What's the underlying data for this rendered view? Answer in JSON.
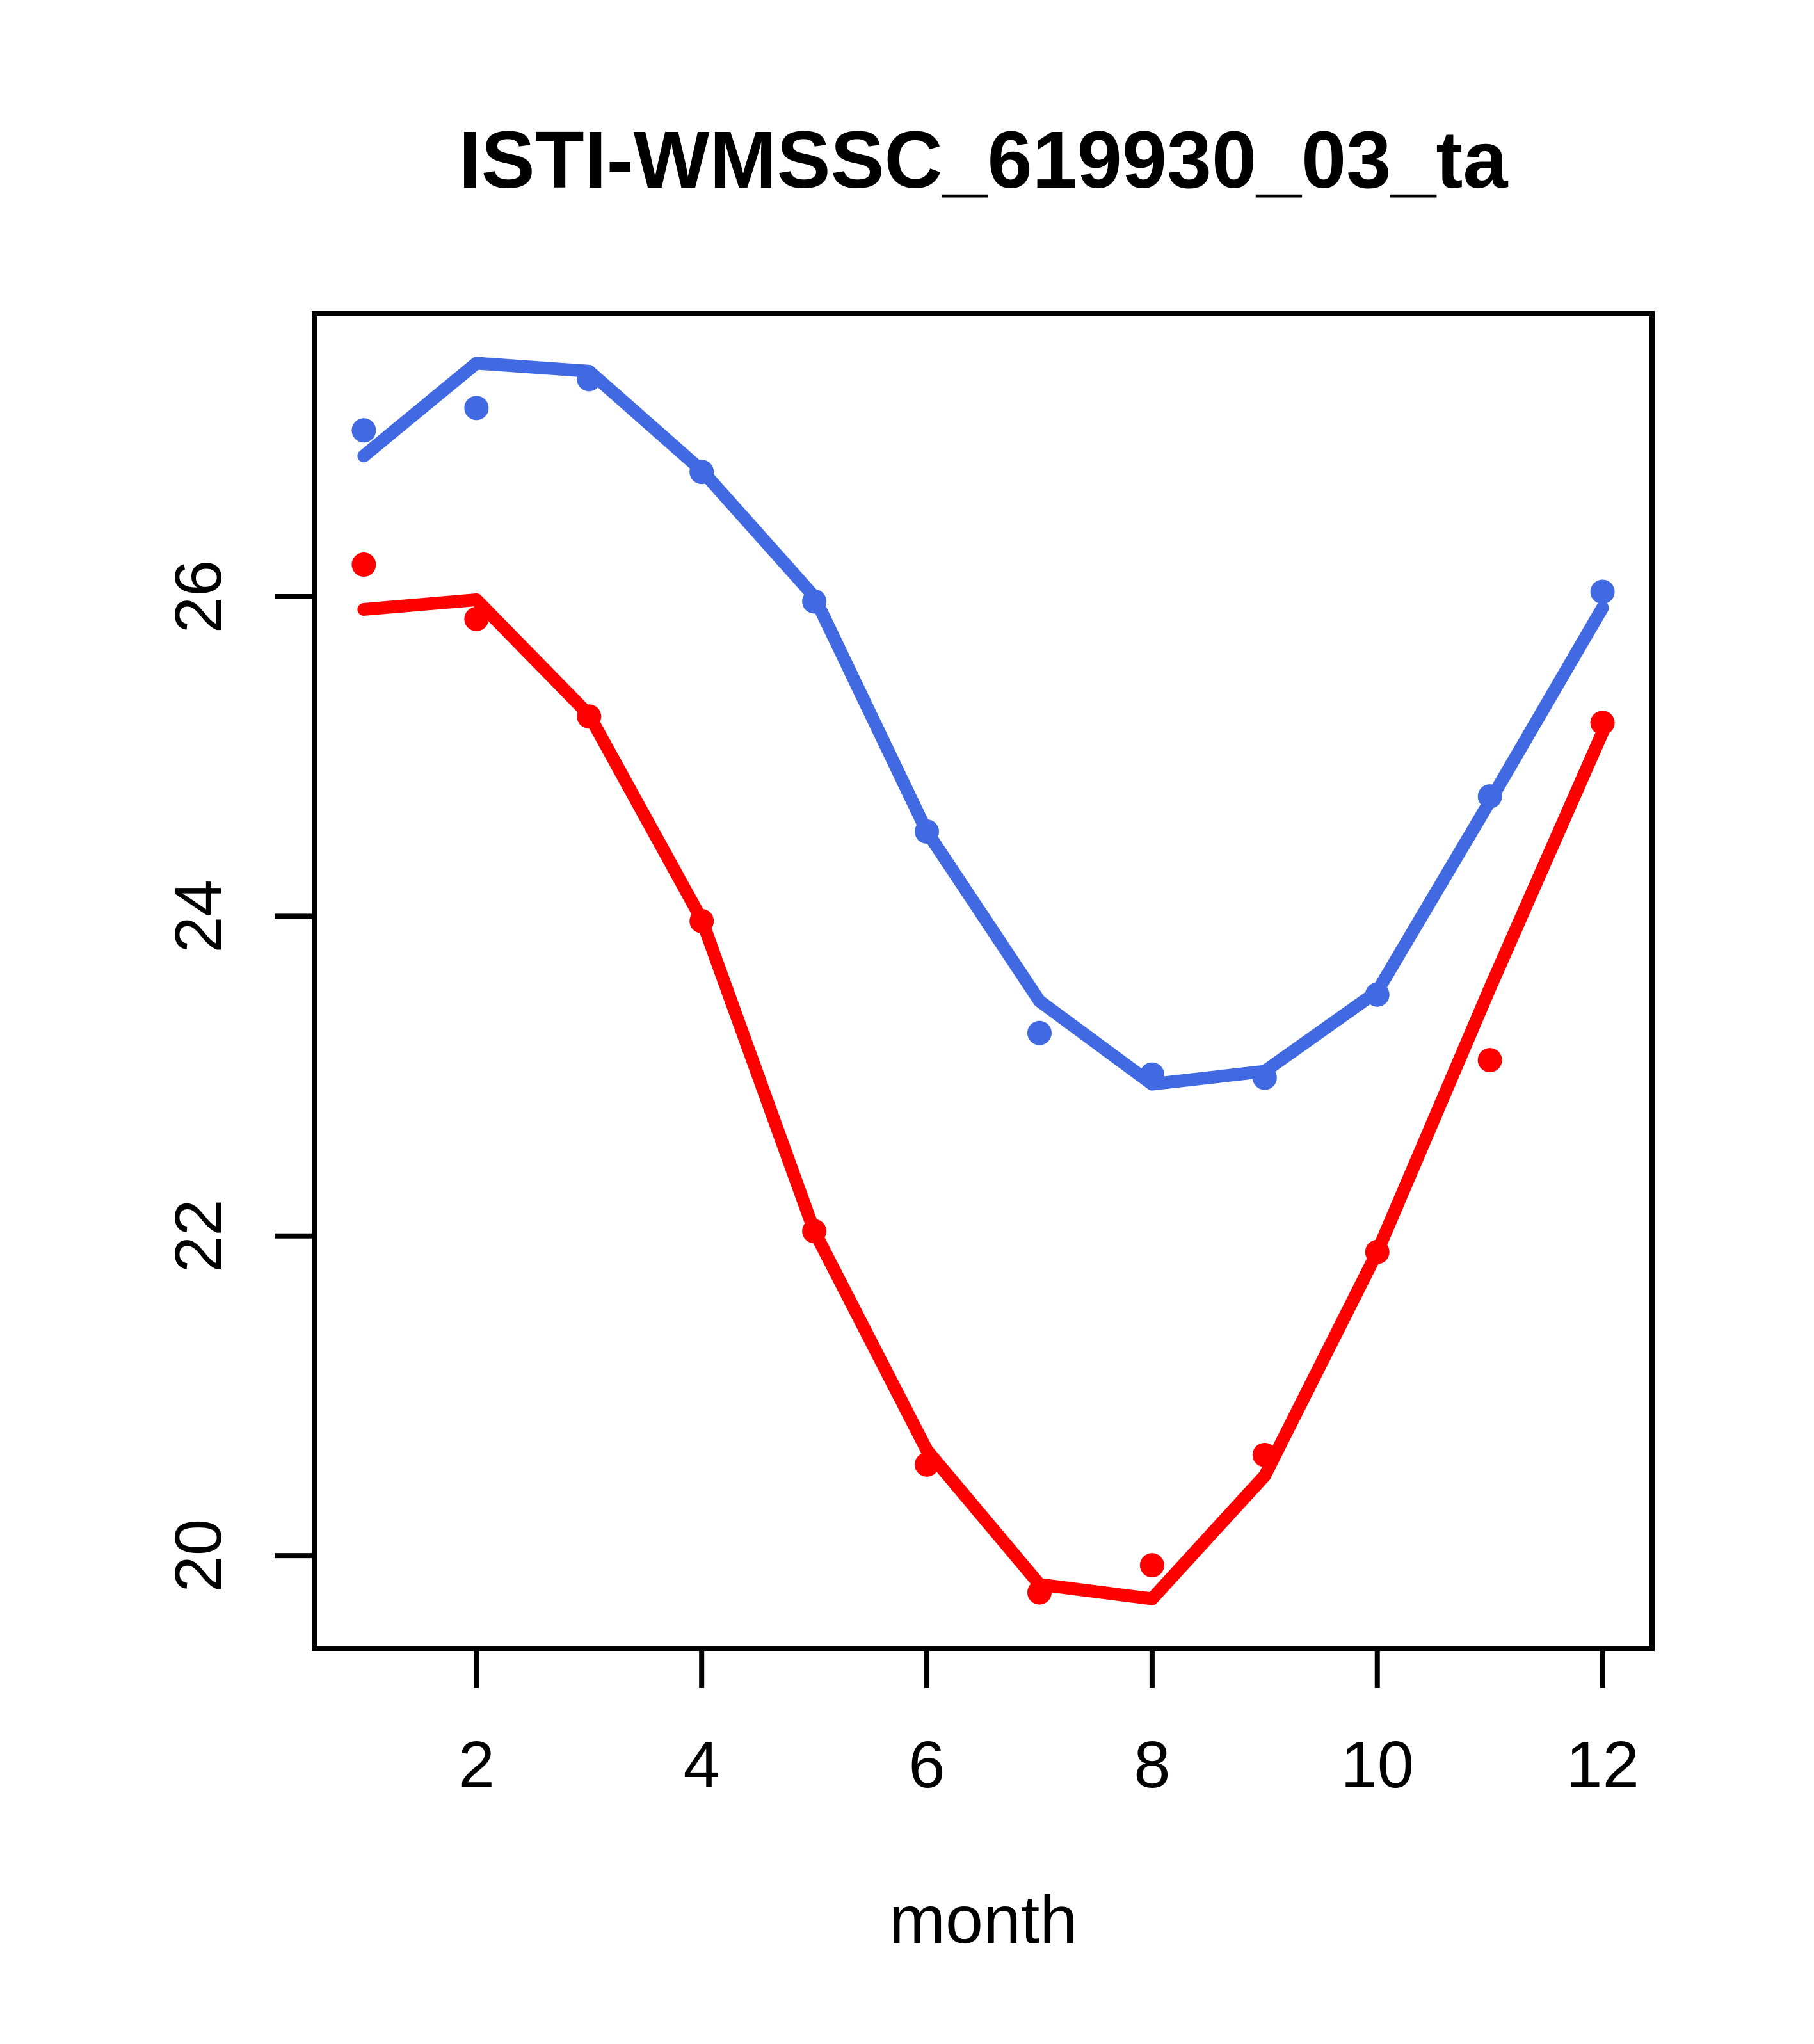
{
  "title": "ISTI-WMSSC_619930_03_ta",
  "xlabel": "month",
  "colors": {
    "series1": "#4169E1",
    "series2": "#FF0000",
    "axis": "#000000",
    "background": "#FFFFFF"
  },
  "chart_data": {
    "type": "line",
    "title": "ISTI-WMSSC_619930_03_ta",
    "xlabel": "month",
    "ylabel": "",
    "x": [
      1,
      2,
      3,
      4,
      5,
      6,
      7,
      8,
      9,
      10,
      11,
      12
    ],
    "xticks": [
      2,
      4,
      6,
      8,
      10,
      12
    ],
    "yticks": [
      20,
      22,
      24,
      26
    ],
    "xlim": [
      0.56,
      12.44
    ],
    "ylim": [
      19.42,
      27.77
    ],
    "grid": false,
    "legend": "none",
    "series": [
      {
        "name": "series1-monthly-points",
        "role": "points",
        "color": "#4169E1",
        "values": [
          27.04,
          27.18,
          27.36,
          26.78,
          25.97,
          24.53,
          23.27,
          23.01,
          22.99,
          23.51,
          24.75,
          26.03
        ]
      },
      {
        "name": "series1-fit-line",
        "role": "line",
        "color": "#4169E1",
        "values": [
          26.88,
          27.46,
          27.41,
          26.79,
          26.0,
          24.53,
          23.47,
          22.95,
          23.03,
          23.53,
          24.72,
          25.93
        ]
      },
      {
        "name": "series2-monthly-points",
        "role": "points",
        "color": "#FF0000",
        "values": [
          26.2,
          25.86,
          25.25,
          23.97,
          22.03,
          20.57,
          19.77,
          19.94,
          20.63,
          21.9,
          23.1,
          25.21
        ]
      },
      {
        "name": "series2-fit-line",
        "role": "line",
        "color": "#FF0000",
        "values": [
          25.92,
          25.98,
          25.26,
          23.98,
          22.03,
          20.66,
          19.82,
          19.73,
          20.5,
          21.9,
          23.55,
          25.15
        ]
      }
    ]
  }
}
